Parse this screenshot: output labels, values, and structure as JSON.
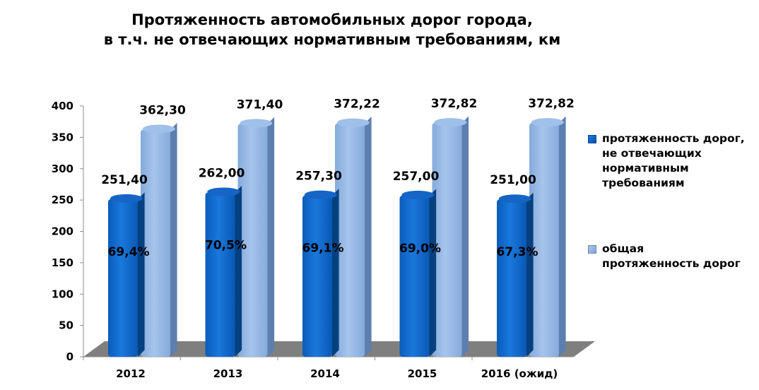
{
  "chart_data": {
    "type": "bar",
    "title_lines": [
      "Протяженность автомобильных дорог города,",
      "в т.ч. не отвечающих нормативным требованиям, км"
    ],
    "categories": [
      "2012",
      "2013",
      "2014",
      "2015",
      "2016 (ожид)"
    ],
    "series": [
      {
        "name": "протяженность дорог, не отвечающих нормативным требованиям",
        "name_lines": [
          "протяженность дорог,",
          "не отвечающих",
          "нормативным",
          "требованиям"
        ],
        "values": [
          251.4,
          262.0,
          257.3,
          257.0,
          251.0
        ],
        "labels": [
          "251,40",
          "262,00",
          "257,30",
          "257,00",
          "251,00"
        ],
        "percent_labels": [
          "69,4%",
          "70,5%",
          "69,1%",
          "69,0%",
          "67,3%"
        ],
        "color": "#0a61c4"
      },
      {
        "name": "общая протяженность дорог",
        "name_lines": [
          "общая",
          "протяженность дорог"
        ],
        "values": [
          362.3,
          371.4,
          372.22,
          372.82,
          372.82
        ],
        "labels": [
          "362,30",
          "371,40",
          "372,22",
          "372,82",
          "372,82"
        ],
        "color": "#8fb4e3"
      }
    ],
    "ylim": [
      0,
      400
    ],
    "yticks": [
      0,
      50,
      100,
      150,
      200,
      250,
      300,
      350,
      400
    ],
    "grid": false,
    "legend_position": "right",
    "three_d": true
  }
}
